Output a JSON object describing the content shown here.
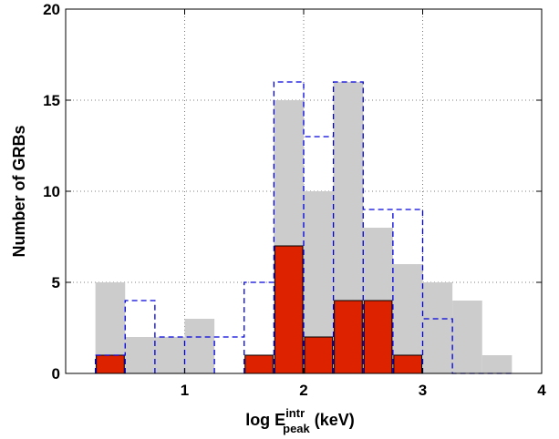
{
  "chart_data": {
    "type": "bar",
    "bin_edges": [
      0.25,
      0.5,
      0.75,
      1.0,
      1.25,
      1.5,
      1.75,
      2.0,
      2.25,
      2.5,
      2.75,
      3.0,
      3.25,
      3.5,
      3.75
    ],
    "series": [
      {
        "style": "gray-filled",
        "values": [
          5,
          2,
          2,
          3,
          0,
          0,
          15,
          10,
          16,
          8,
          6,
          5,
          4,
          1
        ]
      },
      {
        "style": "red-filled",
        "values": [
          1,
          0,
          0,
          0,
          0,
          1,
          7,
          2,
          4,
          4,
          1,
          0,
          0,
          0
        ]
      },
      {
        "style": "blue-dashed",
        "values": [
          1,
          4,
          2,
          2,
          2,
          5,
          16,
          13,
          16,
          9,
          9,
          3,
          0,
          0
        ]
      }
    ],
    "xlim": [
      0,
      4
    ],
    "ylim": [
      0,
      20
    ],
    "xticks": [
      "1",
      "2",
      "3",
      "4"
    ],
    "xtick_values": [
      1,
      2,
      3,
      4
    ],
    "yticks": [
      "0",
      "5",
      "10",
      "15",
      "20"
    ],
    "ytick_values": [
      0,
      5,
      10,
      15,
      20
    ],
    "ylabel": "Number of GRBs",
    "xlabel_main": "log E",
    "xlabel_sup": "intr",
    "xlabel_sub": "peak",
    "xlabel_unit": " (keV)",
    "grid": true,
    "colors": {
      "gray": "#cccccc",
      "red": "#dd2200",
      "blue": "#0000dd"
    }
  }
}
